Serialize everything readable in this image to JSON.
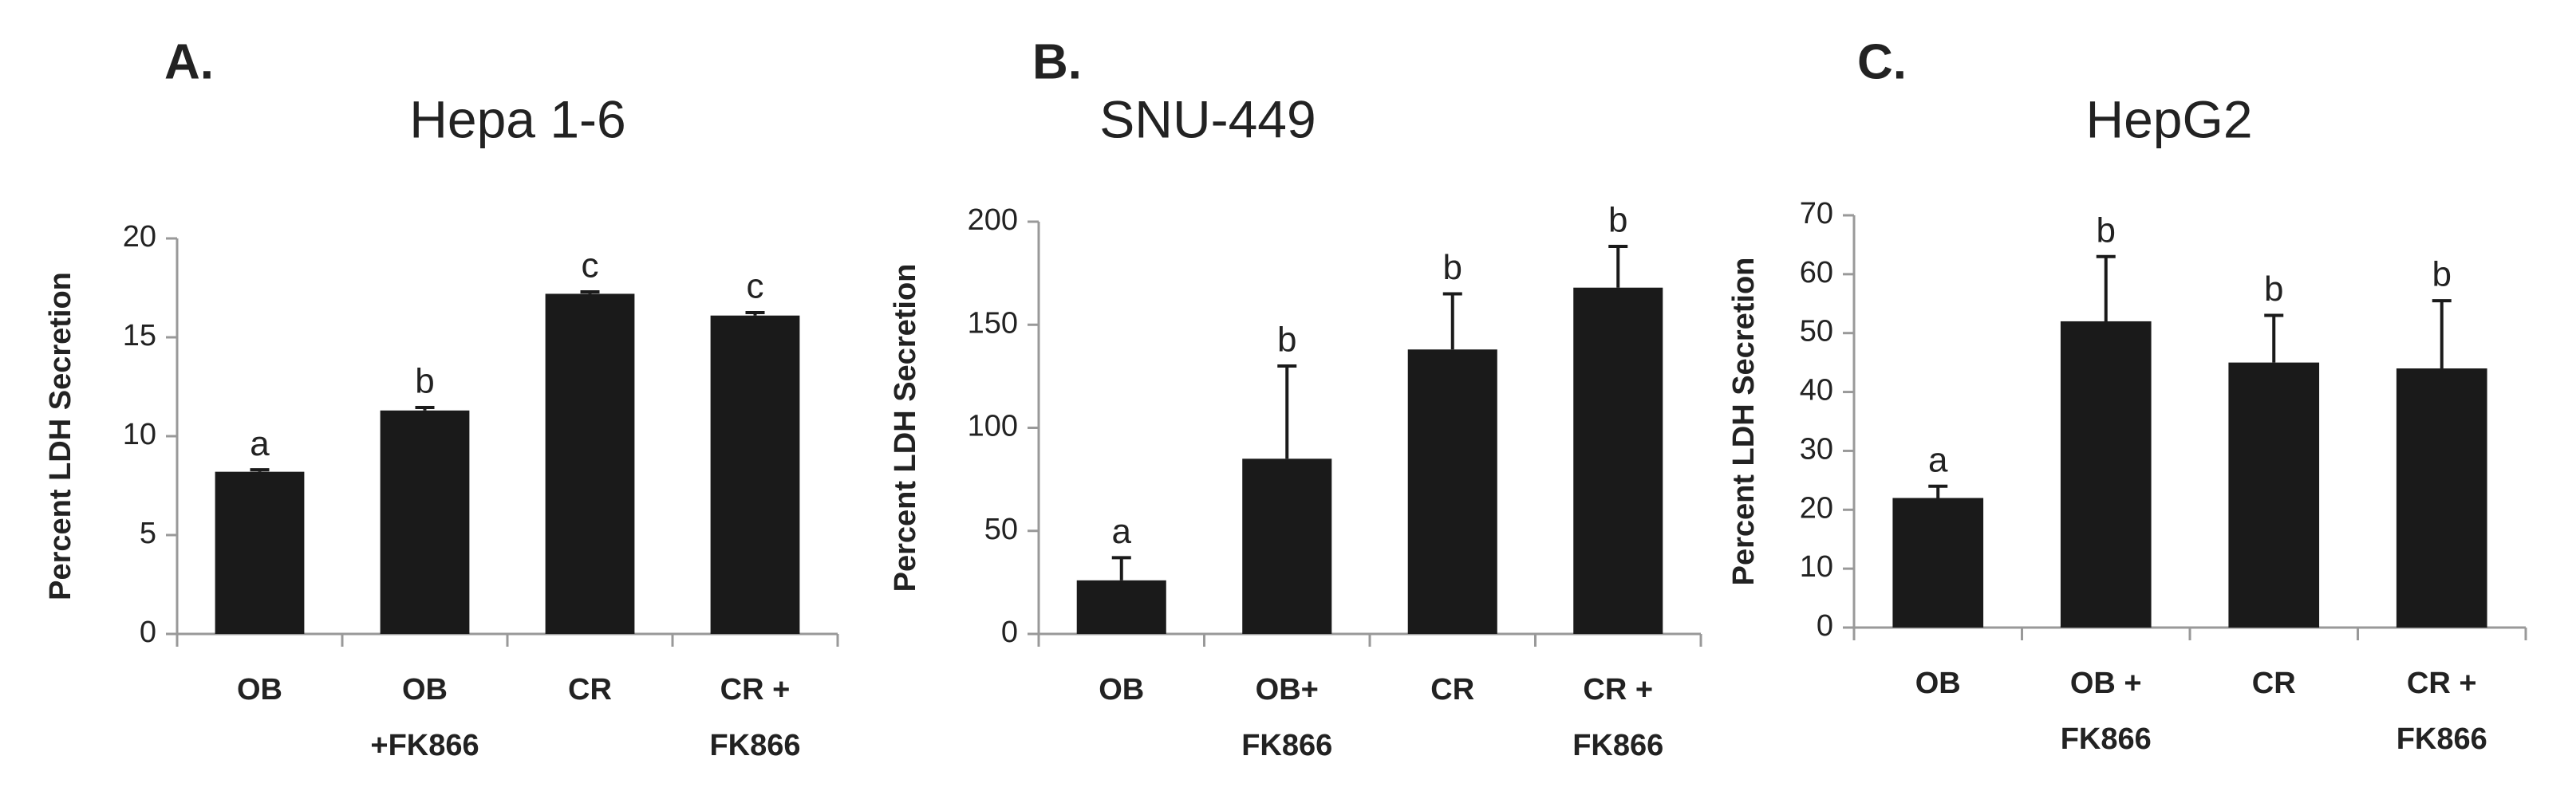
{
  "chart_data": [
    {
      "type": "bar",
      "panel": "A.",
      "title": "Hepa 1-6",
      "ylabel": "Percent LDH Secretion",
      "categories": [
        "OB",
        [
          "OB",
          "+FK866"
        ],
        "CR",
        [
          "CR +",
          "FK866"
        ]
      ],
      "values": [
        8.2,
        11.3,
        17.2,
        16.1
      ],
      "errors": [
        0.1,
        0.15,
        0.1,
        0.15
      ],
      "annotations": [
        "a",
        "b",
        "c",
        "c"
      ],
      "color": "#1a1a1a",
      "ylim": [
        0,
        20
      ],
      "yticks": [
        0,
        5,
        10,
        15,
        20
      ]
    },
    {
      "type": "bar",
      "panel": "B.",
      "title": "SNU-449",
      "ylabel": "Percent LDH Secretion",
      "categories": [
        "OB",
        [
          "OB+",
          "FK866"
        ],
        "CR",
        [
          "CR +",
          "FK866"
        ]
      ],
      "values": [
        26,
        85,
        138,
        168
      ],
      "errors": [
        11,
        45,
        27,
        20
      ],
      "annotations": [
        "a",
        "b",
        "b",
        "b"
      ],
      "color": "#1a1a1a",
      "ylim": [
        0,
        200
      ],
      "yticks": [
        0,
        50,
        100,
        150,
        200
      ]
    },
    {
      "type": "bar",
      "panel": "C.",
      "title": "HepG2",
      "ylabel": "Percent LDH Secretion",
      "categories": [
        "OB",
        [
          "OB +",
          "FK866"
        ],
        "CR",
        [
          "CR +",
          "FK866"
        ]
      ],
      "values": [
        22,
        52,
        45,
        44
      ],
      "errors": [
        2,
        11,
        8,
        11.5
      ],
      "annotations": [
        "a",
        "b",
        "b",
        "b"
      ],
      "color": "#1a1a1a",
      "ylim": [
        0,
        70
      ],
      "yticks": [
        0,
        10,
        20,
        30,
        40,
        50,
        60,
        70
      ]
    }
  ]
}
